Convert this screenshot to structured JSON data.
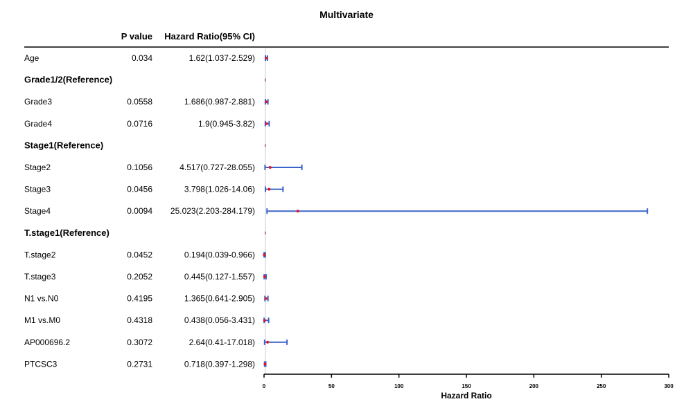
{
  "chart_data": {
    "type": "forest",
    "title": "Multivariate",
    "columns": {
      "pvalue": "P value",
      "hr": "Hazard Ratio(95% CI)"
    },
    "xlabel": "Hazard Ratio",
    "xlim": [
      0,
      300
    ],
    "xticks": [
      0,
      50,
      100,
      150,
      200,
      250,
      300
    ],
    "reference_line": 1,
    "rows": [
      {
        "label": "Age",
        "bold": false,
        "pvalue": "0.034",
        "hr_text": "1.62(1.037-2.529)",
        "hr": 1.62,
        "lo": 1.037,
        "hi": 2.529
      },
      {
        "label": "Grade1/2(Reference)",
        "bold": true,
        "pvalue": "",
        "hr_text": "",
        "hr": 1,
        "lo": 1,
        "hi": 1
      },
      {
        "label": "Grade3",
        "bold": false,
        "pvalue": "0.0558",
        "hr_text": "1.686(0.987-2.881)",
        "hr": 1.686,
        "lo": 0.987,
        "hi": 2.881
      },
      {
        "label": "Grade4",
        "bold": false,
        "pvalue": "0.0716",
        "hr_text": "1.9(0.945-3.82)",
        "hr": 1.9,
        "lo": 0.945,
        "hi": 3.82
      },
      {
        "label": "Stage1(Reference)",
        "bold": true,
        "pvalue": "",
        "hr_text": "",
        "hr": 1,
        "lo": 1,
        "hi": 1
      },
      {
        "label": "Stage2",
        "bold": false,
        "pvalue": "0.1056",
        "hr_text": "4.517(0.727-28.055)",
        "hr": 4.517,
        "lo": 0.727,
        "hi": 28.055
      },
      {
        "label": "Stage3",
        "bold": false,
        "pvalue": "0.0456",
        "hr_text": "3.798(1.026-14.06)",
        "hr": 3.798,
        "lo": 1.026,
        "hi": 14.06
      },
      {
        "label": "Stage4",
        "bold": false,
        "pvalue": "0.0094",
        "hr_text": "25.023(2.203-284.179)",
        "hr": 25.023,
        "lo": 2.203,
        "hi": 284.179
      },
      {
        "label": "T.stage1(Reference)",
        "bold": true,
        "pvalue": "",
        "hr_text": "",
        "hr": 1,
        "lo": 1,
        "hi": 1
      },
      {
        "label": "T.stage2",
        "bold": false,
        "pvalue": "0.0452",
        "hr_text": "0.194(0.039-0.966)",
        "hr": 0.194,
        "lo": 0.039,
        "hi": 0.966
      },
      {
        "label": "T.stage3",
        "bold": false,
        "pvalue": "0.2052",
        "hr_text": "0.445(0.127-1.557)",
        "hr": 0.445,
        "lo": 0.127,
        "hi": 1.557
      },
      {
        "label": "N1 vs.N0",
        "bold": false,
        "pvalue": "0.4195",
        "hr_text": "1.365(0.641-2.905)",
        "hr": 1.365,
        "lo": 0.641,
        "hi": 2.905
      },
      {
        "label": "M1 vs.M0",
        "bold": false,
        "pvalue": "0.4318",
        "hr_text": "0.438(0.056-3.431)",
        "hr": 0.438,
        "lo": 0.056,
        "hi": 3.431
      },
      {
        "label": "AP000696.2",
        "bold": false,
        "pvalue": "0.3072",
        "hr_text": "2.64(0.41-17.018)",
        "hr": 2.64,
        "lo": 0.41,
        "hi": 17.018
      },
      {
        "label": "PTCSC3",
        "bold": false,
        "pvalue": "0.2731",
        "hr_text": "0.718(0.397-1.298)",
        "hr": 0.718,
        "lo": 0.397,
        "hi": 1.298
      }
    ]
  },
  "colors": {
    "ci_line": "#3b63c9",
    "point": "#e0152b",
    "ref_line": "#c8cbd8",
    "rule": "#000000"
  }
}
